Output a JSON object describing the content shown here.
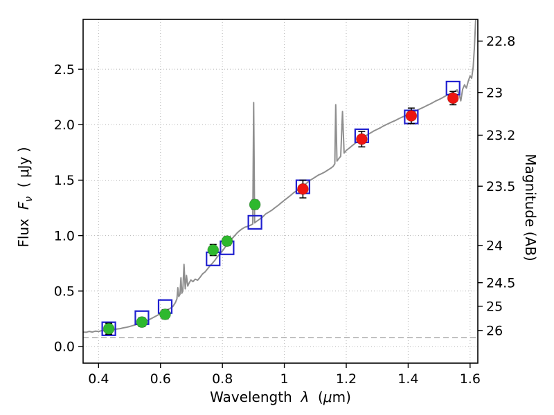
{
  "labels": {
    "xlabel_text": "Wavelength",
    "xlabel_symbol": "λ",
    "xlabel_unit_open": "(",
    "xlabel_unit_mu": "μ",
    "xlabel_unit_close": "m)",
    "ylabel_text": "Flux",
    "ylabel_symbol": "F",
    "ylabel_sub": "ν",
    "ylabel_unit": "( μJy )",
    "y2label": "Magnitude (AB)"
  },
  "chart_data": {
    "type": "line",
    "title": "",
    "xlabel": "Wavelength λ (μm)",
    "ylabel": "Flux Fν ( μJy )",
    "y2label": "Magnitude (AB)",
    "xlim": [
      0.35,
      1.625
    ],
    "ylim": [
      -0.15,
      2.95
    ],
    "x_ticks": {
      "values": [
        0.4,
        0.6,
        0.8,
        1.0,
        1.2,
        1.4,
        1.6
      ],
      "labels": [
        "0.4",
        "0.6",
        "0.8",
        "1",
        "1.2",
        "1.4",
        "1.6"
      ]
    },
    "y_ticks": {
      "values": [
        0.0,
        0.5,
        1.0,
        1.5,
        2.0,
        2.5
      ],
      "labels": [
        "0.0",
        "0.5",
        "1.0",
        "1.5",
        "2.0",
        "2.5"
      ]
    },
    "y2_ticks": {
      "magnitudes": [
        22.8,
        23.0,
        23.2,
        23.5,
        24.0,
        24.5,
        25.0,
        26.0
      ],
      "labels": [
        "22.8",
        "23",
        "23.2",
        "23.5",
        "24",
        "24.5",
        "25",
        "26"
      ],
      "ab_zeropoint_ujy": 23.9
    },
    "grid": {
      "show": true,
      "style": "dotted",
      "color": "#b5b5b5"
    },
    "baseline": {
      "flux": 0.08,
      "style": "dashed",
      "color": "#9a9a9a"
    },
    "spectrum": {
      "name": "model-spectrum",
      "color": "#8f8f8f",
      "points": [
        [
          0.35,
          0.13
        ],
        [
          0.36,
          0.128
        ],
        [
          0.37,
          0.136
        ],
        [
          0.38,
          0.13
        ],
        [
          0.39,
          0.139
        ],
        [
          0.4,
          0.135
        ],
        [
          0.41,
          0.143
        ],
        [
          0.42,
          0.14
        ],
        [
          0.43,
          0.148
        ],
        [
          0.44,
          0.146
        ],
        [
          0.45,
          0.153
        ],
        [
          0.46,
          0.158
        ],
        [
          0.47,
          0.161
        ],
        [
          0.48,
          0.168
        ],
        [
          0.49,
          0.173
        ],
        [
          0.5,
          0.18
        ],
        [
          0.51,
          0.188
        ],
        [
          0.52,
          0.196
        ],
        [
          0.53,
          0.205
        ],
        [
          0.54,
          0.215
        ],
        [
          0.55,
          0.226
        ],
        [
          0.56,
          0.238
        ],
        [
          0.57,
          0.252
        ],
        [
          0.58,
          0.266
        ],
        [
          0.59,
          0.281
        ],
        [
          0.6,
          0.3
        ],
        [
          0.61,
          0.315
        ],
        [
          0.62,
          0.33
        ],
        [
          0.63,
          0.341
        ],
        [
          0.64,
          0.36
        ],
        [
          0.648,
          0.395
        ],
        [
          0.653,
          0.43
        ],
        [
          0.656,
          0.53
        ],
        [
          0.659,
          0.45
        ],
        [
          0.663,
          0.47
        ],
        [
          0.666,
          0.62
        ],
        [
          0.669,
          0.48
        ],
        [
          0.672,
          0.5
        ],
        [
          0.676,
          0.74
        ],
        [
          0.68,
          0.52
        ],
        [
          0.684,
          0.64
        ],
        [
          0.688,
          0.545
        ],
        [
          0.692,
          0.57
        ],
        [
          0.698,
          0.6
        ],
        [
          0.705,
          0.585
        ],
        [
          0.712,
          0.607
        ],
        [
          0.72,
          0.598
        ],
        [
          0.728,
          0.625
        ],
        [
          0.736,
          0.655
        ],
        [
          0.744,
          0.672
        ],
        [
          0.752,
          0.7
        ],
        [
          0.76,
          0.728
        ],
        [
          0.768,
          0.752
        ],
        [
          0.776,
          0.778
        ],
        [
          0.784,
          0.81
        ],
        [
          0.792,
          0.838
        ],
        [
          0.8,
          0.862
        ],
        [
          0.808,
          0.892
        ],
        [
          0.816,
          0.925
        ],
        [
          0.824,
          0.952
        ],
        [
          0.832,
          0.975
        ],
        [
          0.84,
          1.0
        ],
        [
          0.848,
          1.025
        ],
        [
          0.856,
          1.045
        ],
        [
          0.864,
          1.062
        ],
        [
          0.872,
          1.075
        ],
        [
          0.88,
          1.082
        ],
        [
          0.888,
          1.09
        ],
        [
          0.894,
          1.098
        ],
        [
          0.898,
          1.105
        ],
        [
          0.901,
          2.2
        ],
        [
          0.904,
          1.115
        ],
        [
          0.91,
          1.128
        ],
        [
          0.92,
          1.148
        ],
        [
          0.93,
          1.168
        ],
        [
          0.94,
          1.196
        ],
        [
          0.95,
          1.212
        ],
        [
          0.96,
          1.23
        ],
        [
          0.97,
          1.252
        ],
        [
          0.98,
          1.272
        ],
        [
          0.99,
          1.296
        ],
        [
          1.0,
          1.318
        ],
        [
          1.01,
          1.34
        ],
        [
          1.02,
          1.362
        ],
        [
          1.03,
          1.386
        ],
        [
          1.04,
          1.405
        ],
        [
          1.05,
          1.428
        ],
        [
          1.06,
          1.448
        ],
        [
          1.07,
          1.468
        ],
        [
          1.08,
          1.493
        ],
        [
          1.09,
          1.51
        ],
        [
          1.1,
          1.528
        ],
        [
          1.11,
          1.546
        ],
        [
          1.12,
          1.558
        ],
        [
          1.13,
          1.572
        ],
        [
          1.14,
          1.59
        ],
        [
          1.15,
          1.608
        ],
        [
          1.158,
          1.625
        ],
        [
          1.163,
          1.648
        ],
        [
          1.166,
          2.18
        ],
        [
          1.17,
          1.672
        ],
        [
          1.176,
          1.695
        ],
        [
          1.182,
          1.715
        ],
        [
          1.188,
          2.12
        ],
        [
          1.193,
          1.745
        ],
        [
          1.2,
          1.768
        ],
        [
          1.21,
          1.79
        ],
        [
          1.22,
          1.812
        ],
        [
          1.23,
          1.835
        ],
        [
          1.24,
          1.858
        ],
        [
          1.25,
          1.878
        ],
        [
          1.26,
          1.895
        ],
        [
          1.27,
          1.912
        ],
        [
          1.28,
          1.928
        ],
        [
          1.29,
          1.945
        ],
        [
          1.3,
          1.958
        ],
        [
          1.31,
          1.972
        ],
        [
          1.32,
          1.988
        ],
        [
          1.33,
          2.002
        ],
        [
          1.34,
          2.015
        ],
        [
          1.35,
          2.028
        ],
        [
          1.36,
          2.04
        ],
        [
          1.37,
          2.055
        ],
        [
          1.38,
          2.068
        ],
        [
          1.39,
          2.08
        ],
        [
          1.4,
          2.092
        ],
        [
          1.41,
          2.105
        ],
        [
          1.42,
          2.118
        ],
        [
          1.43,
          2.132
        ],
        [
          1.44,
          2.145
        ],
        [
          1.45,
          2.158
        ],
        [
          1.46,
          2.172
        ],
        [
          1.47,
          2.185
        ],
        [
          1.48,
          2.2
        ],
        [
          1.49,
          2.215
        ],
        [
          1.5,
          2.228
        ],
        [
          1.51,
          2.242
        ],
        [
          1.52,
          2.258
        ],
        [
          1.53,
          2.272
        ],
        [
          1.54,
          2.288
        ],
        [
          1.55,
          2.3
        ],
        [
          1.558,
          2.315
        ],
        [
          1.565,
          2.27
        ],
        [
          1.57,
          2.215
        ],
        [
          1.576,
          2.32
        ],
        [
          1.582,
          2.36
        ],
        [
          1.588,
          2.33
        ],
        [
          1.594,
          2.39
        ],
        [
          1.6,
          2.44
        ],
        [
          1.605,
          2.42
        ],
        [
          1.61,
          2.52
        ],
        [
          1.614,
          2.7
        ],
        [
          1.618,
          2.95
        ],
        [
          1.621,
          3.05
        ]
      ]
    },
    "series": [
      {
        "name": "observed-photometry-optical",
        "marker": "circle",
        "color": "#2eb82e",
        "points": [
          [
            0.433,
            0.16,
            0.05
          ],
          [
            0.54,
            0.22,
            0.04
          ],
          [
            0.615,
            0.29,
            0.04
          ],
          [
            0.77,
            0.87,
            0.05
          ],
          [
            0.815,
            0.95,
            0.04
          ],
          [
            0.905,
            1.28,
            0.04
          ]
        ]
      },
      {
        "name": "observed-photometry-nir",
        "marker": "circle",
        "color": "#ee1511",
        "points": [
          [
            1.06,
            1.42,
            0.08
          ],
          [
            1.25,
            1.87,
            0.07
          ],
          [
            1.41,
            2.08,
            0.07
          ],
          [
            1.545,
            2.24,
            0.06
          ]
        ]
      },
      {
        "name": "model-photometry",
        "marker": "open-square",
        "color": "#1f1fd0",
        "points": [
          [
            0.433,
            0.16
          ],
          [
            0.54,
            0.26
          ],
          [
            0.615,
            0.36
          ],
          [
            0.77,
            0.79
          ],
          [
            0.815,
            0.89
          ],
          [
            0.905,
            1.12
          ],
          [
            1.06,
            1.44
          ],
          [
            1.25,
            1.9
          ],
          [
            1.41,
            2.07
          ],
          [
            1.545,
            2.33
          ]
        ]
      }
    ]
  }
}
